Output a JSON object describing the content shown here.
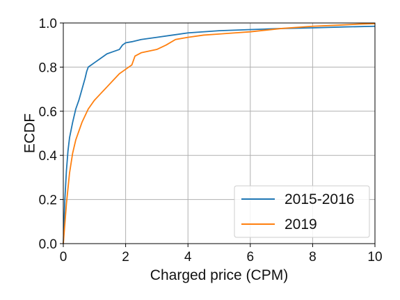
{
  "chart_data": {
    "type": "line",
    "xlabel": "Charged price (CPM)",
    "ylabel": "ECDF",
    "xlim": [
      0,
      10
    ],
    "ylim": [
      0.0,
      1.0
    ],
    "x_ticks": [
      0,
      2,
      4,
      6,
      8,
      10
    ],
    "y_ticks": [
      0.0,
      0.2,
      0.4,
      0.6,
      0.8,
      1.0
    ],
    "x_tick_labels": [
      "0",
      "2",
      "4",
      "6",
      "8",
      "10"
    ],
    "y_tick_labels": [
      "0.0",
      "0.2",
      "0.4",
      "0.6",
      "0.8",
      "1.0"
    ],
    "grid": true,
    "legend_position": "lower-right",
    "series": [
      {
        "name": "2015-2016",
        "color": "#1f77b4",
        "points": [
          [
            0.0,
            0.0
          ],
          [
            0.05,
            0.2
          ],
          [
            0.1,
            0.33
          ],
          [
            0.15,
            0.42
          ],
          [
            0.2,
            0.48
          ],
          [
            0.3,
            0.55
          ],
          [
            0.4,
            0.61
          ],
          [
            0.5,
            0.65
          ],
          [
            0.6,
            0.7
          ],
          [
            0.7,
            0.75
          ],
          [
            0.75,
            0.78
          ],
          [
            0.8,
            0.8
          ],
          [
            0.9,
            0.81
          ],
          [
            1.0,
            0.82
          ],
          [
            1.2,
            0.84
          ],
          [
            1.4,
            0.86
          ],
          [
            1.6,
            0.87
          ],
          [
            1.8,
            0.88
          ],
          [
            1.9,
            0.9
          ],
          [
            2.0,
            0.91
          ],
          [
            2.2,
            0.915
          ],
          [
            2.5,
            0.925
          ],
          [
            3.0,
            0.935
          ],
          [
            3.5,
            0.945
          ],
          [
            4.0,
            0.955
          ],
          [
            5.0,
            0.965
          ],
          [
            6.0,
            0.97
          ],
          [
            7.0,
            0.975
          ],
          [
            8.0,
            0.978
          ],
          [
            9.0,
            0.982
          ],
          [
            10.0,
            0.985
          ]
        ]
      },
      {
        "name": "2019",
        "color": "#ff7f0e",
        "points": [
          [
            0.0,
            0.0
          ],
          [
            0.1,
            0.18
          ],
          [
            0.2,
            0.32
          ],
          [
            0.3,
            0.41
          ],
          [
            0.4,
            0.47
          ],
          [
            0.5,
            0.51
          ],
          [
            0.6,
            0.55
          ],
          [
            0.7,
            0.58
          ],
          [
            0.8,
            0.61
          ],
          [
            0.9,
            0.63
          ],
          [
            1.0,
            0.65
          ],
          [
            1.2,
            0.68
          ],
          [
            1.4,
            0.71
          ],
          [
            1.6,
            0.74
          ],
          [
            1.8,
            0.77
          ],
          [
            2.0,
            0.79
          ],
          [
            2.2,
            0.81
          ],
          [
            2.3,
            0.85
          ],
          [
            2.5,
            0.865
          ],
          [
            3.0,
            0.88
          ],
          [
            3.3,
            0.9
          ],
          [
            3.6,
            0.925
          ],
          [
            4.0,
            0.935
          ],
          [
            4.5,
            0.945
          ],
          [
            5.0,
            0.95
          ],
          [
            5.5,
            0.955
          ],
          [
            6.0,
            0.96
          ],
          [
            7.0,
            0.975
          ],
          [
            8.0,
            0.985
          ],
          [
            8.8,
            0.99
          ],
          [
            9.5,
            0.995
          ],
          [
            10.0,
            0.997
          ]
        ]
      }
    ]
  }
}
